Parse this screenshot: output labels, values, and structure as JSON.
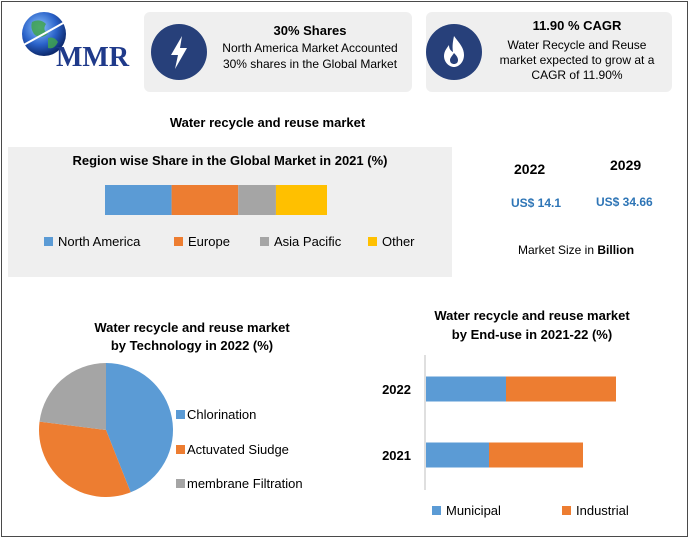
{
  "logo": {
    "text": "MMR"
  },
  "card1": {
    "icon": "lightning-icon",
    "title": "30% Shares",
    "line1": "North America Market Accounted",
    "line2": "30% shares in the Global Market"
  },
  "card2": {
    "icon": "flame-icon",
    "title": "11.90 % CAGR",
    "line1": "Water Recycle and Reuse",
    "line2": "market expected to grow at a",
    "line3": "CAGR of 11.90%"
  },
  "main_title": "Water recycle and reuse market",
  "market_size": {
    "year1": "2022",
    "year2": "2029",
    "value1": "US$ 14.1",
    "value2": "US$ 34.66",
    "caption_prefix": "Market Size in ",
    "caption_bold": "Billion"
  },
  "colors": {
    "blue": "#5b9bd5",
    "orange": "#ed7d31",
    "gray": "#a5a5a5",
    "yellow": "#ffc000",
    "navy": "#27407a",
    "value_blue": "#2e75b6"
  },
  "chart_data": [
    {
      "type": "bar",
      "orientation": "horizontal-stacked-100",
      "title": "Region wise Share in the Global Market in 2021 (%)",
      "series": [
        {
          "name": "North America",
          "values": [
            30
          ]
        },
        {
          "name": "Europe",
          "values": [
            30
          ]
        },
        {
          "name": "Asia Pacific",
          "values": [
            17
          ]
        },
        {
          "name": "Other",
          "values": [
            23
          ]
        }
      ],
      "legend": "bottom"
    },
    {
      "type": "pie",
      "title_line1": "Water recycle and reuse market",
      "title_line2": "by Technology in 2022 (%)",
      "labels": [
        "Chlorination",
        "Actuvated Siudge",
        "membrane Filtration"
      ],
      "values": [
        44,
        33,
        23
      ],
      "legend": "right"
    },
    {
      "type": "bar",
      "orientation": "horizontal-stacked",
      "title_line1": "Water recycle and reuse market",
      "title_line2": "by End-use in 2021-22 (%)",
      "categories": [
        "2022",
        "2021"
      ],
      "series": [
        {
          "name": "Municipal",
          "values": [
            80,
            63
          ]
        },
        {
          "name": "Industrial",
          "values": [
            110,
            94
          ]
        }
      ],
      "legend": "bottom"
    }
  ]
}
